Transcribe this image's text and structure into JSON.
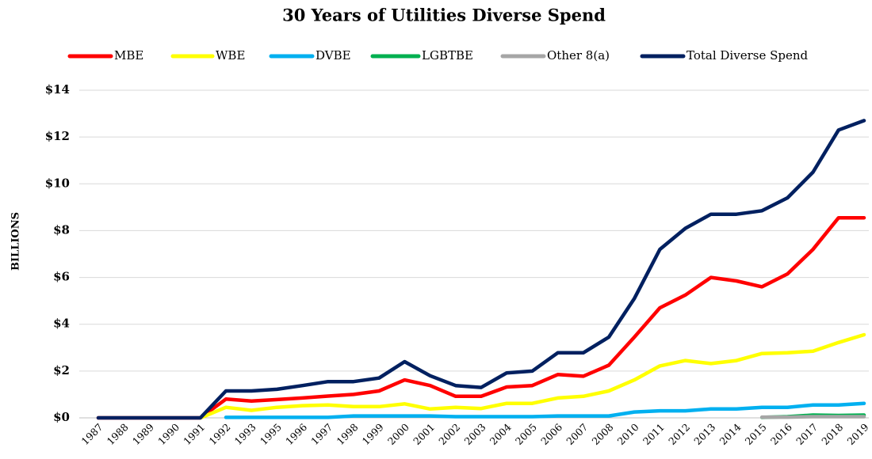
{
  "chart_data": {
    "type": "line",
    "title": "30 Years of Utilities Diverse Spend",
    "y_label": "BILLIONS",
    "categories": [
      "1987",
      "1988",
      "1989",
      "1990",
      "1991",
      "1992",
      "1993",
      "1995",
      "1996",
      "1997",
      "1998",
      "1999",
      "2000",
      "2001",
      "2002",
      "2003",
      "2004",
      "2005",
      "2006",
      "2007",
      "2008",
      "2010",
      "2011",
      "2012",
      "2013",
      "2014",
      "2015",
      "2016",
      "2017",
      "2018",
      "2019"
    ],
    "series": [
      {
        "name": "MBE",
        "color": "#ff0000",
        "values": [
          0,
          0,
          0,
          0,
          0,
          0.8,
          0.72,
          0.78,
          0.85,
          0.93,
          1.0,
          1.15,
          1.62,
          1.38,
          0.92,
          0.92,
          1.32,
          1.38,
          1.85,
          1.78,
          2.25,
          3.45,
          4.7,
          5.25,
          6.0,
          5.85,
          5.6,
          6.15,
          7.2,
          8.55,
          8.55
        ]
      },
      {
        "name": "WBE",
        "color": "#ffff00",
        "values": [
          null,
          null,
          null,
          null,
          0,
          0.45,
          0.32,
          0.45,
          0.52,
          0.55,
          0.48,
          0.48,
          0.6,
          0.38,
          0.45,
          0.4,
          0.62,
          0.62,
          0.85,
          0.92,
          1.15,
          1.62,
          2.22,
          2.45,
          2.32,
          2.45,
          2.75,
          2.78,
          2.85,
          3.22,
          3.55
        ]
      },
      {
        "name": "DVBE",
        "color": "#00b0f0",
        "values": [
          null,
          null,
          null,
          null,
          null,
          0.02,
          0.02,
          0.02,
          0.02,
          0.02,
          0.08,
          0.08,
          0.08,
          0.08,
          0.05,
          0.05,
          0.05,
          0.05,
          0.08,
          0.08,
          0.08,
          0.25,
          0.3,
          0.3,
          0.38,
          0.38,
          0.45,
          0.45,
          0.55,
          0.55,
          0.62
        ]
      },
      {
        "name": "LGBTBE",
        "color": "#00b050",
        "values": [
          null,
          null,
          null,
          null,
          null,
          null,
          null,
          null,
          null,
          null,
          null,
          null,
          null,
          null,
          null,
          null,
          null,
          null,
          null,
          null,
          null,
          null,
          null,
          null,
          null,
          null,
          0.02,
          0.05,
          0.12,
          0.1,
          0.12
        ]
      },
      {
        "name": "Other 8(a)",
        "color": "#a6a6a6",
        "values": [
          null,
          null,
          null,
          null,
          null,
          null,
          null,
          null,
          null,
          null,
          null,
          null,
          null,
          null,
          null,
          null,
          null,
          null,
          null,
          null,
          null,
          null,
          null,
          null,
          null,
          null,
          0.03,
          0.03,
          0.05,
          0.05,
          0.05
        ]
      },
      {
        "name": "Total Diverse Spend",
        "color": "#002060",
        "values": [
          0,
          0,
          0,
          0,
          0,
          1.15,
          1.15,
          1.22,
          1.38,
          1.55,
          1.55,
          1.7,
          2.4,
          1.8,
          1.38,
          1.3,
          1.92,
          2.0,
          2.78,
          2.78,
          3.45,
          5.1,
          7.2,
          8.1,
          8.7,
          8.7,
          8.85,
          9.4,
          10.5,
          12.3,
          12.7
        ]
      }
    ],
    "ylim": [
      0,
      14
    ],
    "yticks": [
      {
        "value": 0,
        "label": "$0"
      },
      {
        "value": 2,
        "label": "$2"
      },
      {
        "value": 4,
        "label": "$4"
      },
      {
        "value": 6,
        "label": "$6"
      },
      {
        "value": 8,
        "label": "$8"
      },
      {
        "value": 10,
        "label": "$10"
      },
      {
        "value": 12,
        "label": "$12"
      },
      {
        "value": 14,
        "label": "$14"
      }
    ],
    "grid": true,
    "legend": "top"
  }
}
